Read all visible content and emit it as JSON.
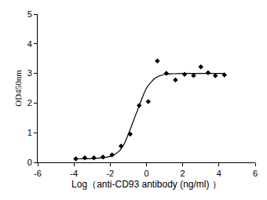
{
  "chart_data": {
    "type": "scatter",
    "x_label": "Log（anti-CD93 antibody (ng/ml) ）",
    "y_label": "OD450nm",
    "xlim": [
      -6,
      6
    ],
    "xticks": [
      -6,
      -4,
      -2,
      0,
      2,
      4,
      6
    ],
    "ylim": [
      0,
      5
    ],
    "yticks": [
      0,
      1,
      2,
      3,
      4,
      5
    ],
    "grid": false,
    "series": [
      {
        "type": "scatter",
        "marker": "diamond",
        "color": "#000000",
        "x": [
          -3.9,
          -3.4,
          -2.9,
          -2.4,
          -1.9,
          -1.4,
          -0.9,
          -0.4,
          0.1,
          0.6,
          1.1,
          1.6,
          2.1,
          2.6,
          3.0,
          3.4,
          3.8,
          4.3
        ],
        "values": [
          0.12,
          0.15,
          0.15,
          0.18,
          0.25,
          0.55,
          0.95,
          1.92,
          2.05,
          3.42,
          3.0,
          2.78,
          2.97,
          2.93,
          3.22,
          3.02,
          2.92,
          2.95
        ]
      },
      {
        "type": "line",
        "line_style": "solid",
        "color": "#000000",
        "x": [
          -4.0,
          -3.0,
          -2.0,
          -1.5,
          -1.25,
          -1.0,
          -0.75,
          -0.5,
          -0.25,
          0.0,
          0.25,
          0.5,
          1.0,
          1.5,
          2.0,
          3.0,
          4.3
        ],
        "values": [
          0.12,
          0.13,
          0.2,
          0.38,
          0.6,
          0.95,
          1.35,
          1.75,
          2.15,
          2.5,
          2.7,
          2.85,
          2.97,
          2.99,
          3.0,
          3.0,
          3.0
        ]
      }
    ]
  }
}
